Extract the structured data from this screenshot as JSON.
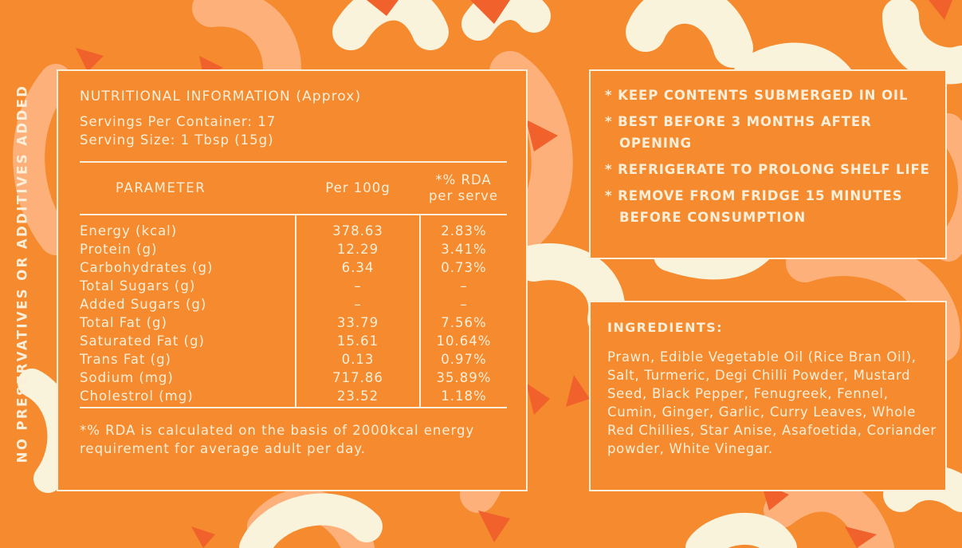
{
  "colors": {
    "background": "#F58A2E",
    "text": "#FBEFD9",
    "shrimp_peach": "#FDB07A",
    "shrimp_cream": "#FAF3DC",
    "tail_red": "#F0612C"
  },
  "side_text": "NO PRESERVATIVES OR ADDITIVES ADDED",
  "nutrition": {
    "title": "NUTRITIONAL INFORMATION (Approx)",
    "servings_per_container": "Servings Per Container: 17",
    "serving_size": "Serving Size: 1 Tbsp (15g)",
    "headers": {
      "parameter": "PARAMETER",
      "per100g": "Per 100g",
      "rda_line1": "*% RDA",
      "rda_line2": "per serve"
    },
    "rows": [
      {
        "parameter": "Energy (kcal)",
        "per100g": "378.63",
        "rda": "2.83%"
      },
      {
        "parameter": "Protein (g)",
        "per100g": "12.29",
        "rda": "3.41%"
      },
      {
        "parameter": "Carbohydrates (g)",
        "per100g": "6.34",
        "rda": "0.73%"
      },
      {
        "parameter": "Total Sugars (g)",
        "per100g": "–",
        "rda": "–"
      },
      {
        "parameter": "Added Sugars (g)",
        "per100g": "–",
        "rda": "–"
      },
      {
        "parameter": "Total Fat (g)",
        "per100g": "33.79",
        "rda": "7.56%"
      },
      {
        "parameter": "Saturated Fat (g)",
        "per100g": "15.61",
        "rda": "10.64%"
      },
      {
        "parameter": "Trans Fat (g)",
        "per100g": "0.13",
        "rda": "0.97%"
      },
      {
        "parameter": "Sodium (mg)",
        "per100g": "717.86",
        "rda": "35.89%"
      },
      {
        "parameter": "Cholestrol (mg)",
        "per100g": "23.52",
        "rda": "1.18%"
      }
    ],
    "footnote": "*% RDA is calculated on the basis of 2000kcal energy requirement for average adult per day."
  },
  "storage": [
    "* KEEP CONTENTS SUBMERGED IN OIL",
    "* BEST BEFORE 3 MONTHS AFTER OPENING",
    "* REFRIGERATE TO PROLONG SHELF LIFE",
    "* REMOVE FROM FRIDGE 15 MINUTES BEFORE CONSUMPTION"
  ],
  "ingredients": {
    "title": "INGREDIENTS:",
    "text": "Prawn, Edible Vegetable Oil (Rice Bran Oil), Salt, Turmeric, Degi Chilli Powder, Mustard Seed, Black Pepper, Fenugreek, Fennel, Cumin, Ginger, Garlic, Curry Leaves, Whole Red Chillies, Star Anise, Asafoetida, Coriander powder, White Vinegar."
  }
}
